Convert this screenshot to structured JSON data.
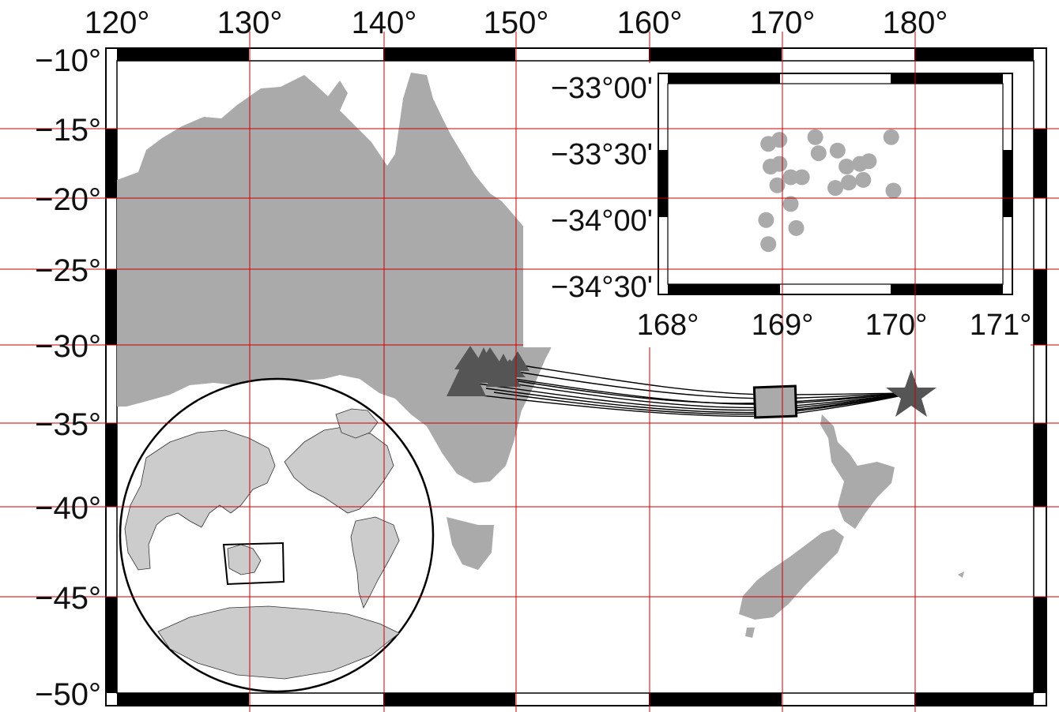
{
  "main_map": {
    "x_ticks": [
      {
        "lon": 120,
        "label": "120°"
      },
      {
        "lon": 130,
        "label": "130°"
      },
      {
        "lon": 140,
        "label": "140°"
      },
      {
        "lon": 150,
        "label": "150°"
      },
      {
        "lon": 160,
        "label": "160°"
      },
      {
        "lon": 170,
        "label": "170°"
      },
      {
        "lon": 180,
        "label": "180°"
      }
    ],
    "y_ticks": [
      {
        "lat": -10,
        "label": "−10°"
      },
      {
        "lat": -15,
        "label": "−15°"
      },
      {
        "lat": -20,
        "label": "−20°"
      },
      {
        "lat": -25,
        "label": "−25°"
      },
      {
        "lat": -30,
        "label": "−30°"
      },
      {
        "lat": -35,
        "label": "−35°"
      },
      {
        "lat": -40,
        "label": "−40°"
      },
      {
        "lat": -45,
        "label": "−45°"
      },
      {
        "lat": -50,
        "label": "−50°"
      }
    ],
    "lon_range": [
      120,
      190
    ],
    "lat_range": [
      -50,
      -10
    ],
    "land_color": "#aaaaaa",
    "grid_color": "#cc0000",
    "event_star": {
      "lon": 180,
      "lat": -33,
      "symbol": "star",
      "color": "#555555"
    },
    "stations": {
      "symbol": "triangle",
      "color": "#555555",
      "lat_range": [
        -33,
        -30
      ],
      "lon_range": [
        145,
        151
      ]
    },
    "study_box": {
      "lon_range": [
        168,
        171
      ],
      "lat_range": [
        -34.5,
        -33
      ]
    }
  },
  "zoom_inset": {
    "x_ticks": [
      {
        "lon": 168,
        "label": "168°"
      },
      {
        "lon": 169,
        "label": "169°"
      },
      {
        "lon": 170,
        "label": "170°"
      },
      {
        "lon": 171,
        "label": "171°"
      }
    ],
    "y_ticks": [
      {
        "lat": -33.0,
        "label": "−33°00'"
      },
      {
        "lat": -33.5,
        "label": "−33°30'"
      },
      {
        "lat": -34.0,
        "label": "−34°00'"
      },
      {
        "lat": -34.5,
        "label": "−34°30'"
      }
    ],
    "points": [
      [
        168.9,
        -33.45
      ],
      [
        169.0,
        -33.42
      ],
      [
        169.32,
        -33.4
      ],
      [
        170.0,
        -33.4
      ],
      [
        169.52,
        -33.5
      ],
      [
        169.35,
        -33.52
      ],
      [
        168.92,
        -33.62
      ],
      [
        169.0,
        -33.6
      ],
      [
        169.6,
        -33.62
      ],
      [
        169.72,
        -33.6
      ],
      [
        169.8,
        -33.58
      ],
      [
        169.1,
        -33.7
      ],
      [
        169.2,
        -33.7
      ],
      [
        168.98,
        -33.76
      ],
      [
        169.5,
        -33.78
      ],
      [
        169.62,
        -33.74
      ],
      [
        169.75,
        -33.72
      ],
      [
        170.02,
        -33.8
      ],
      [
        169.1,
        -33.9
      ],
      [
        168.88,
        -34.02
      ],
      [
        169.15,
        -34.08
      ],
      [
        168.9,
        -34.2
      ]
    ],
    "point_color": "#aaaaaa"
  },
  "globe_inset": {
    "land_color": "#cccccc",
    "region_box_label": ""
  }
}
